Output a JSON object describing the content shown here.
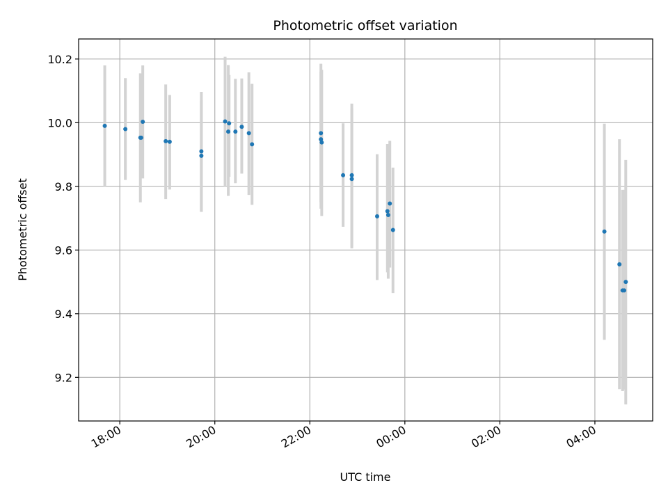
{
  "chart_data": {
    "type": "scatter",
    "title": "Photometric offset variation",
    "xlabel": "UTC time",
    "ylabel": "Photometric offset",
    "x_axis_type": "time",
    "x_range": [
      "17:08",
      "05:13"
    ],
    "y_range": [
      9.063,
      10.263
    ],
    "grid": true,
    "x_ticks": [
      "18:00",
      "20:00",
      "22:00",
      "00:00",
      "02:00",
      "04:00"
    ],
    "x_tick_labels_rotated": true,
    "y_ticks": [
      9.2,
      9.4,
      9.6,
      9.8,
      10.0,
      10.2
    ],
    "marker_color": "#1f77b4",
    "errorbar_color": "#d3d3d3",
    "points": [
      {
        "x": "17:41",
        "y": 9.99,
        "ylo": 9.8,
        "yhi": 10.18
      },
      {
        "x": "18:07",
        "y": 9.98,
        "ylo": 9.82,
        "yhi": 10.14
      },
      {
        "x": "18:26",
        "y": 9.953,
        "ylo": 9.75,
        "yhi": 10.155
      },
      {
        "x": "18:27",
        "y": 9.953,
        "ylo": 9.83,
        "yhi": 10.08
      },
      {
        "x": "18:29",
        "y": 10.003,
        "ylo": 9.825,
        "yhi": 10.18
      },
      {
        "x": "18:58",
        "y": 9.942,
        "ylo": 9.76,
        "yhi": 10.12
      },
      {
        "x": "19:03",
        "y": 9.94,
        "ylo": 9.79,
        "yhi": 10.087
      },
      {
        "x": "19:43",
        "y": 9.91,
        "ylo": 9.72,
        "yhi": 10.097
      },
      {
        "x": "19:43",
        "y": 9.896,
        "ylo": 9.72,
        "yhi": 10.07
      },
      {
        "x": "20:13",
        "y": 10.004,
        "ylo": 9.8,
        "yhi": 10.207
      },
      {
        "x": "20:17",
        "y": 9.972,
        "ylo": 9.77,
        "yhi": 10.181
      },
      {
        "x": "20:18",
        "y": 9.998,
        "ylo": 9.83,
        "yhi": 10.15
      },
      {
        "x": "20:26",
        "y": 9.972,
        "ylo": 9.81,
        "yhi": 10.138
      },
      {
        "x": "20:34",
        "y": 9.987,
        "ylo": 9.84,
        "yhi": 10.139
      },
      {
        "x": "20:43",
        "y": 9.967,
        "ylo": 9.773,
        "yhi": 10.158
      },
      {
        "x": "20:47",
        "y": 9.932,
        "ylo": 9.742,
        "yhi": 10.122
      },
      {
        "x": "22:14",
        "y": 9.967,
        "ylo": 9.73,
        "yhi": 10.185
      },
      {
        "x": "22:14",
        "y": 9.948,
        "ylo": 9.75,
        "yhi": 10.16
      },
      {
        "x": "22:15",
        "y": 9.938,
        "ylo": 9.707,
        "yhi": 10.166
      },
      {
        "x": "22:42",
        "y": 9.835,
        "ylo": 9.673,
        "yhi": 9.998
      },
      {
        "x": "22:53",
        "y": 9.835,
        "ylo": 9.61,
        "yhi": 10.06
      },
      {
        "x": "22:53",
        "y": 9.823,
        "ylo": 9.605,
        "yhi": 10.045
      },
      {
        "x": "23:25",
        "y": 9.706,
        "ylo": 9.506,
        "yhi": 9.901
      },
      {
        "x": "23:38",
        "y": 9.722,
        "ylo": 9.53,
        "yhi": 9.933
      },
      {
        "x": "23:39",
        "y": 9.71,
        "ylo": 9.51,
        "yhi": 9.91
      },
      {
        "x": "23:41",
        "y": 9.746,
        "ylo": 9.545,
        "yhi": 9.943
      },
      {
        "x": "23:45",
        "y": 9.663,
        "ylo": 9.465,
        "yhi": 9.859
      },
      {
        "x": "04:12",
        "y": 9.658,
        "ylo": 9.318,
        "yhi": 9.997
      },
      {
        "x": "04:31",
        "y": 9.555,
        "ylo": 9.163,
        "yhi": 9.948
      },
      {
        "x": "04:35",
        "y": 9.473,
        "ylo": 9.157,
        "yhi": 9.789
      },
      {
        "x": "04:37",
        "y": 9.473,
        "ylo": 9.162,
        "yhi": 9.789
      },
      {
        "x": "04:39",
        "y": 9.5,
        "ylo": 9.115,
        "yhi": 9.883
      }
    ]
  }
}
